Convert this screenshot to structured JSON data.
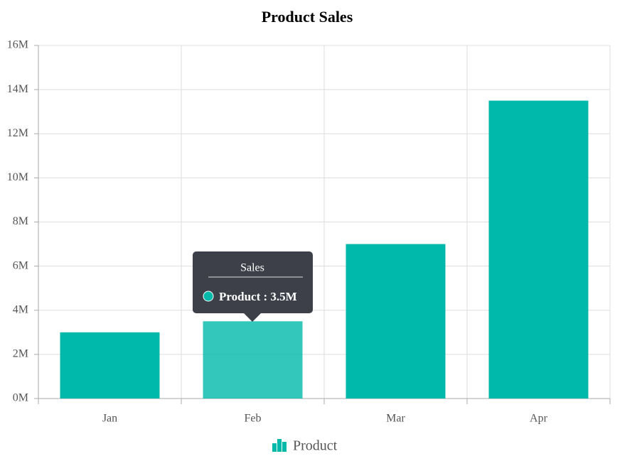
{
  "chart_data": {
    "type": "bar",
    "title": "Product Sales",
    "categories": [
      "Jan",
      "Feb",
      "Mar",
      "Apr"
    ],
    "series": [
      {
        "name": "Product",
        "color": "#00b9aa",
        "values": [
          3,
          3.5,
          7,
          13.5
        ]
      }
    ],
    "ylim": [
      0,
      16
    ],
    "yticks": [
      {
        "value": 0,
        "label": "0M"
      },
      {
        "value": 2,
        "label": "2M"
      },
      {
        "value": 4,
        "label": "4M"
      },
      {
        "value": 6,
        "label": "6M"
      },
      {
        "value": 8,
        "label": "8M"
      },
      {
        "value": 10,
        "label": "10M"
      },
      {
        "value": 12,
        "label": "12M"
      },
      {
        "value": 14,
        "label": "14M"
      },
      {
        "value": 16,
        "label": "16M"
      }
    ],
    "grid": true,
    "tooltip": {
      "title": "Sales",
      "text": "Product : 3.5M"
    }
  }
}
